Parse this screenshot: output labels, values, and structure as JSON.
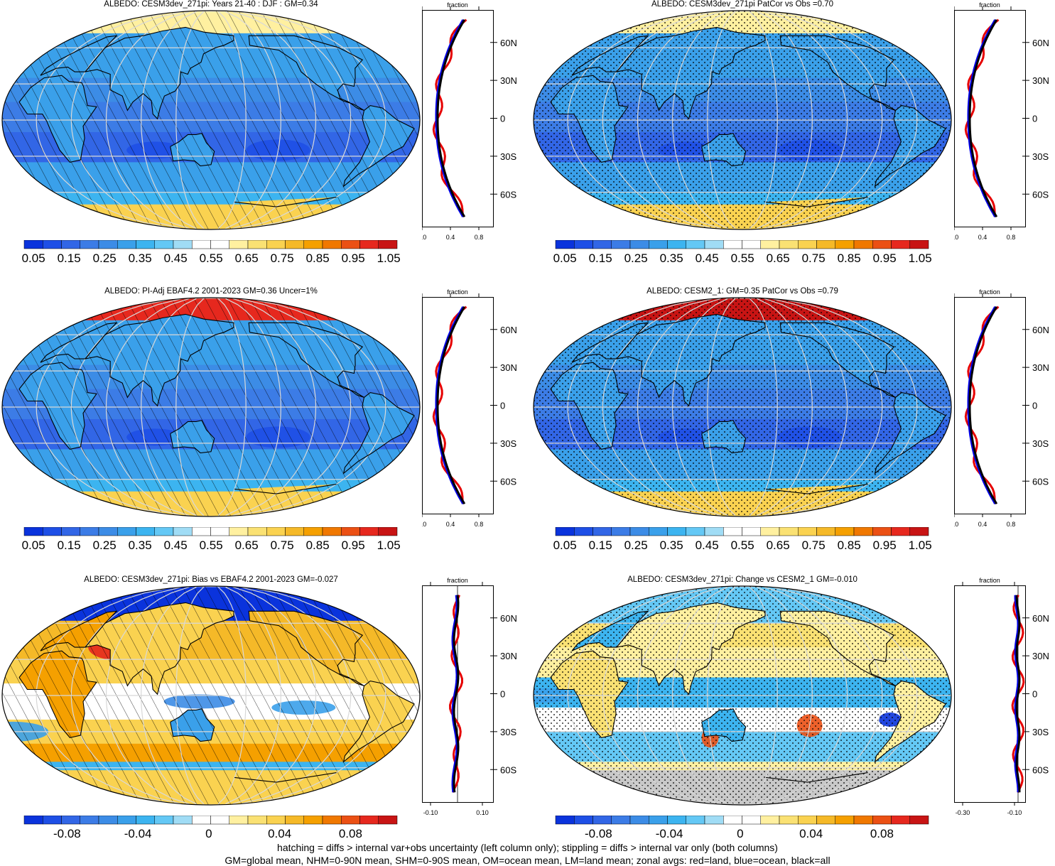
{
  "colors": {
    "scale": [
      "#0a33dc",
      "#1e4fe6",
      "#3266e6",
      "#3c7ce6",
      "#3c8ce6",
      "#3aa0ea",
      "#3cb4f0",
      "#64c8f5",
      "#a0dcf5",
      "#ffffff",
      "#ffffff",
      "#fff0a0",
      "#fae173",
      "#fad250",
      "#f5b928",
      "#f5a000",
      "#f07800",
      "#eb5014",
      "#e6281e",
      "#c81414"
    ],
    "land_gray": "#c8c8c8",
    "ocean_blue": "#3c8ce6",
    "profile_land": "#e60000",
    "profile_ocean": "#0000e6",
    "profile_all": "#000000"
  },
  "legend_labels": {
    "absolute": [
      "0.05",
      "0.15",
      "0.25",
      "0.35",
      "0.45",
      "0.55",
      "0.65",
      "0.75",
      "0.85",
      "0.95",
      "1.05"
    ],
    "difference": [
      "-0.08",
      "-0.04",
      "0",
      "0.04",
      "0.08"
    ]
  },
  "profile_axis": {
    "title": "fraction",
    "lat_labels": [
      "60N",
      "30N",
      "0",
      "30S",
      "60S"
    ],
    "abs_ticks": [
      "0.0",
      "0.4",
      "0.8"
    ],
    "bias_ticks": [
      "-0.10",
      "0.10"
    ],
    "change_ticks": [
      "-0.30",
      "-0.10"
    ]
  },
  "panels": [
    {
      "title": "ALBEDO: CESM3dev_271pi: Years 21-40 : DJF : GM=0.34",
      "style": "model",
      "marks": "hatch",
      "legend": "absolute",
      "ticks": "abs_ticks"
    },
    {
      "title": "ALBEDO: CESM3dev_271pi PatCor vs Obs =0.70",
      "style": "model",
      "marks": "dots",
      "legend": "absolute",
      "ticks": "abs_ticks"
    },
    {
      "title": "ALBEDO: PI-Adj EBAF4.2 2001-2023 GM=0.36 Uncer=1%",
      "style": "obs",
      "marks": "hatch",
      "legend": "absolute",
      "ticks": "abs_ticks"
    },
    {
      "title": "ALBEDO: CESM2_1: GM=0.35 PatCor vs Obs =0.79",
      "style": "obs2",
      "marks": "dots",
      "legend": "absolute",
      "ticks": "abs_ticks"
    },
    {
      "title": "ALBEDO: CESM3dev_271pi: Bias vs EBAF4.2 2001-2023 GM=-0.027",
      "style": "bias",
      "marks": "hatch",
      "legend": "difference",
      "ticks": "bias_ticks"
    },
    {
      "title": "ALBEDO: CESM3dev_271pi: Change vs CESM2_1 GM=-0.010",
      "style": "change",
      "marks": "dots",
      "legend": "difference",
      "ticks": "change_ticks"
    }
  ],
  "footer": {
    "line1": "hatching = diffs > internal var+obs uncertainty (left column only); stippling = diffs > internal var only (both columns)",
    "line2": "GM=global mean, NHM=0-90N mean, SHM=0-90S mean, OM=ocean mean, LM=land mean; zonal avgs: red=land, blue=ocean, black=all"
  }
}
